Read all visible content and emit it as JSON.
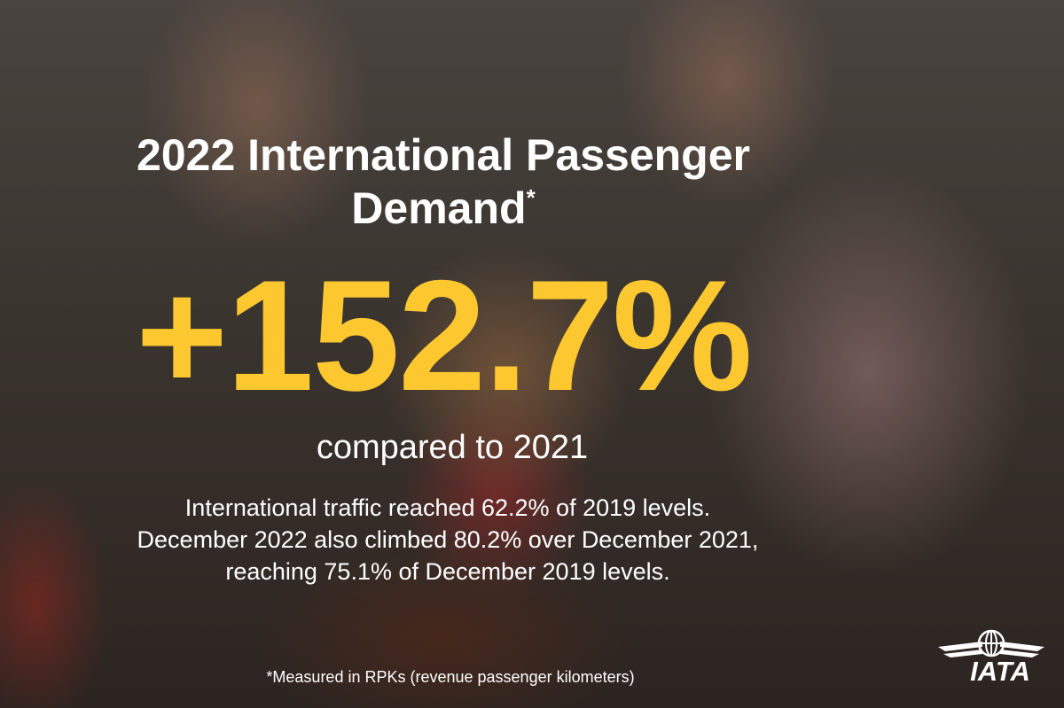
{
  "headline": {
    "title_lines": [
      "2022 International Passenger",
      "Demand"
    ],
    "title_mark": "*",
    "figure": "+152.7%",
    "figure_caption": "compared to 2021"
  },
  "body": [
    "International traffic reached 62.2% of 2019 levels.",
    "December 2022 also climbed 80.2% over December 2021,",
    "reaching 75.1% of December 2019 levels."
  ],
  "footnote": "*Measured in RPKs (revenue passenger kilometers)",
  "logo": "IATA"
}
